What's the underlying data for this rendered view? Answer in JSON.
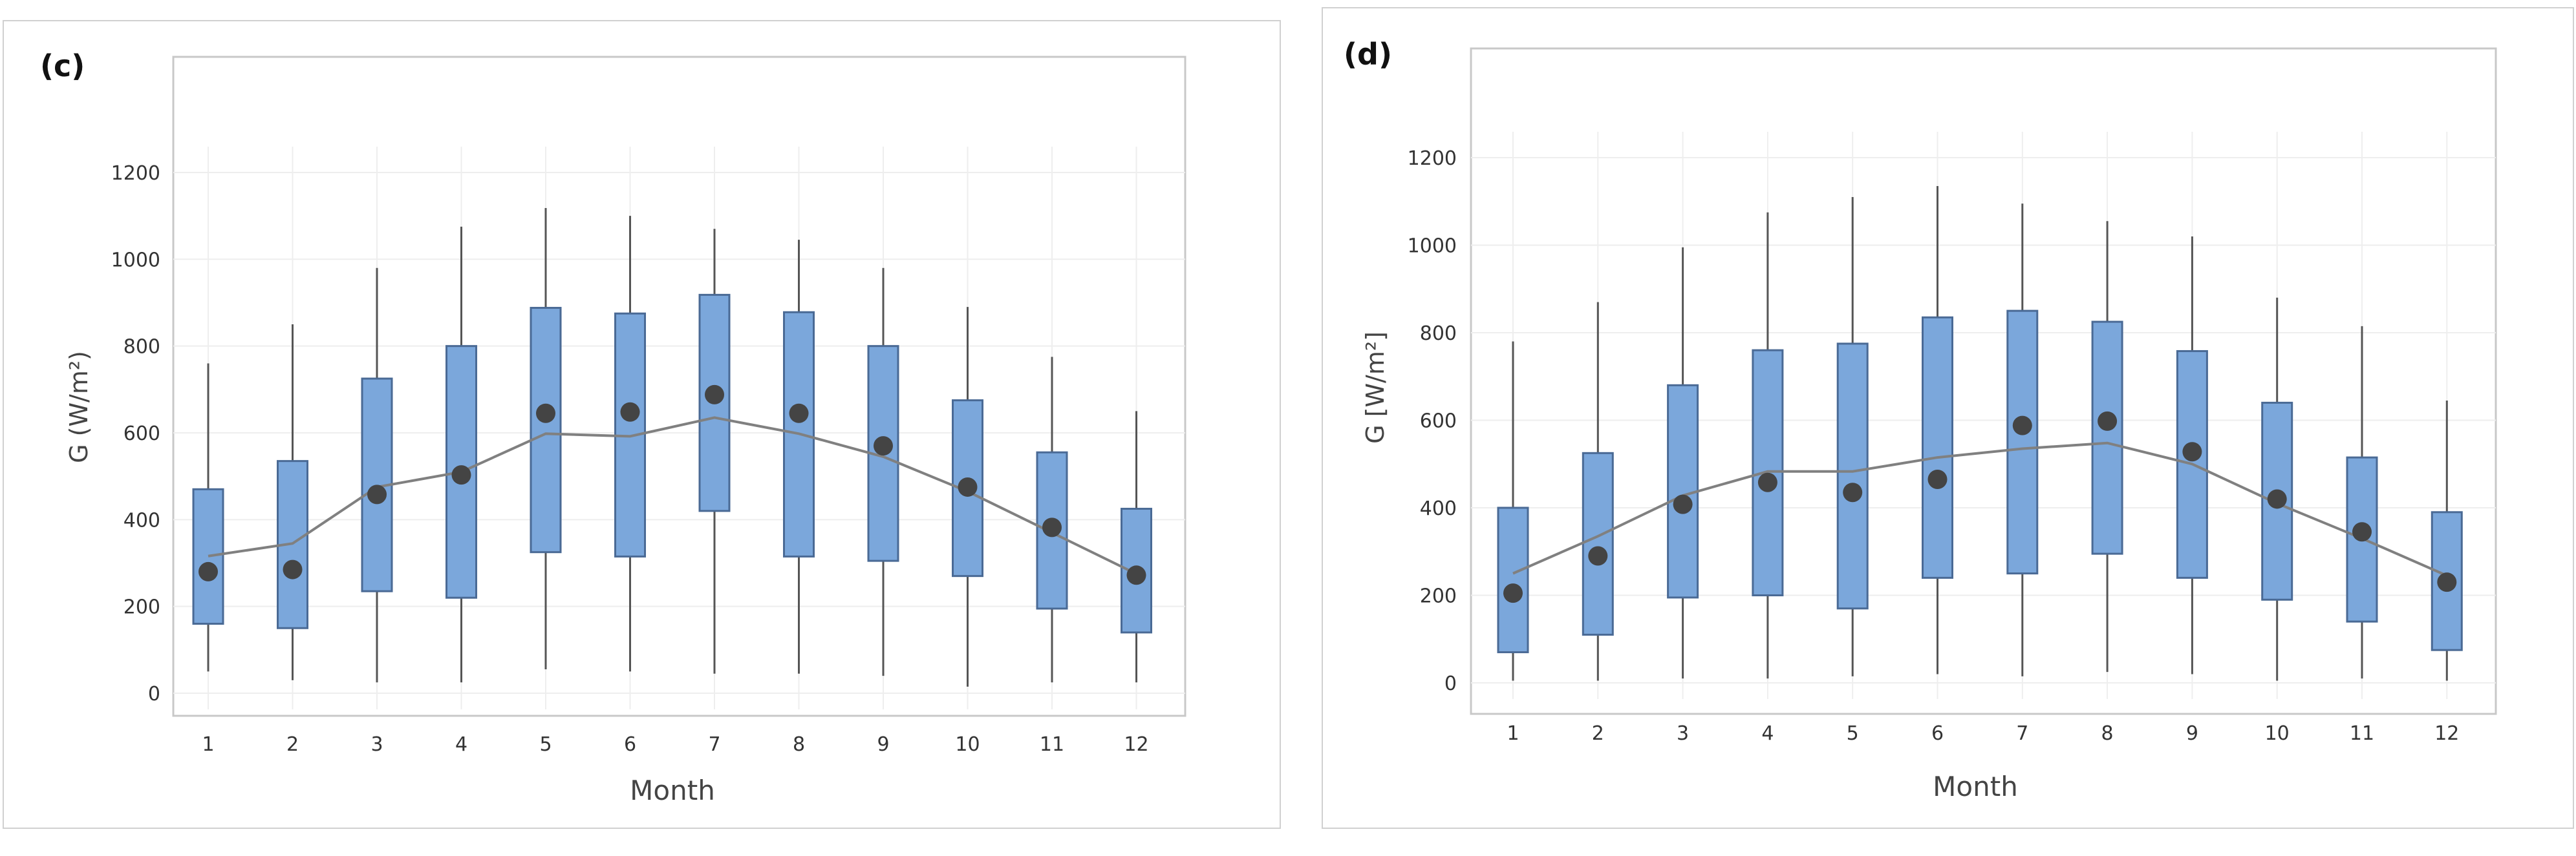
{
  "colors": {
    "box_fill": "#7ba7db",
    "box_stroke": "#4a6a95",
    "whisker": "#555555",
    "mean_dot": "#444444",
    "median_line": "#808080",
    "frame": "#c8c8c8",
    "grid": "#eeeeee",
    "text": "#333333"
  },
  "chart_data": [
    {
      "type": "box",
      "panel_label": "(c)",
      "xlabel": "Month",
      "ylabel": "G (W/m²)",
      "ylim": [
        0,
        1200
      ],
      "yticks": [
        0,
        200,
        400,
        600,
        800,
        1000,
        1200
      ],
      "categories": [
        "1",
        "2",
        "3",
        "4",
        "5",
        "6",
        "7",
        "8",
        "9",
        "10",
        "11",
        "12"
      ],
      "grid": true,
      "boxes": [
        {
          "min": 50,
          "q1": 160,
          "q3": 470,
          "max": 760,
          "mean": 280
        },
        {
          "min": 30,
          "q1": 150,
          "q3": 535,
          "max": 850,
          "mean": 285
        },
        {
          "min": 25,
          "q1": 235,
          "q3": 725,
          "max": 980,
          "mean": 458
        },
        {
          "min": 25,
          "q1": 220,
          "q3": 800,
          "max": 1075,
          "mean": 503
        },
        {
          "min": 55,
          "q1": 325,
          "q3": 888,
          "max": 1118,
          "mean": 645
        },
        {
          "min": 50,
          "q1": 315,
          "q3": 875,
          "max": 1100,
          "mean": 648
        },
        {
          "min": 45,
          "q1": 420,
          "q3": 918,
          "max": 1070,
          "mean": 688
        },
        {
          "min": 45,
          "q1": 315,
          "q3": 878,
          "max": 1045,
          "mean": 645
        },
        {
          "min": 40,
          "q1": 305,
          "q3": 800,
          "max": 980,
          "mean": 570
        },
        {
          "min": 15,
          "q1": 270,
          "q3": 675,
          "max": 890,
          "mean": 475
        },
        {
          "min": 25,
          "q1": 195,
          "q3": 555,
          "max": 775,
          "mean": 382
        },
        {
          "min": 25,
          "q1": 140,
          "q3": 425,
          "max": 650,
          "mean": 272
        }
      ],
      "line": [
        316,
        345,
        475,
        510,
        598,
        592,
        635,
        598,
        545,
        465,
        370,
        275
      ]
    },
    {
      "type": "box",
      "panel_label": "(d)",
      "xlabel": "Month",
      "ylabel": "G [W/m²]",
      "ylim": [
        0,
        1200
      ],
      "yticks": [
        0,
        200,
        400,
        600,
        800,
        1000,
        1200
      ],
      "categories": [
        "1",
        "2",
        "3",
        "4",
        "5",
        "6",
        "7",
        "8",
        "9",
        "10",
        "11",
        "12"
      ],
      "grid": true,
      "boxes": [
        {
          "min": 5,
          "q1": 70,
          "q3": 400,
          "max": 780,
          "mean": 205
        },
        {
          "min": 5,
          "q1": 110,
          "q3": 525,
          "max": 870,
          "mean": 290
        },
        {
          "min": 10,
          "q1": 195,
          "q3": 680,
          "max": 995,
          "mean": 408
        },
        {
          "min": 10,
          "q1": 200,
          "q3": 760,
          "max": 1075,
          "mean": 458
        },
        {
          "min": 15,
          "q1": 170,
          "q3": 775,
          "max": 1110,
          "mean": 435
        },
        {
          "min": 20,
          "q1": 240,
          "q3": 835,
          "max": 1135,
          "mean": 465
        },
        {
          "min": 15,
          "q1": 250,
          "q3": 850,
          "max": 1095,
          "mean": 588
        },
        {
          "min": 25,
          "q1": 295,
          "q3": 825,
          "max": 1055,
          "mean": 598
        },
        {
          "min": 20,
          "q1": 240,
          "q3": 758,
          "max": 1020,
          "mean": 528
        },
        {
          "min": 5,
          "q1": 190,
          "q3": 640,
          "max": 880,
          "mean": 420
        },
        {
          "min": 10,
          "q1": 140,
          "q3": 515,
          "max": 815,
          "mean": 345
        },
        {
          "min": 5,
          "q1": 75,
          "q3": 390,
          "max": 645,
          "mean": 230
        }
      ],
      "line": [
        250,
        335,
        428,
        483,
        483,
        515,
        535,
        548,
        500,
        410,
        330,
        245
      ]
    }
  ]
}
